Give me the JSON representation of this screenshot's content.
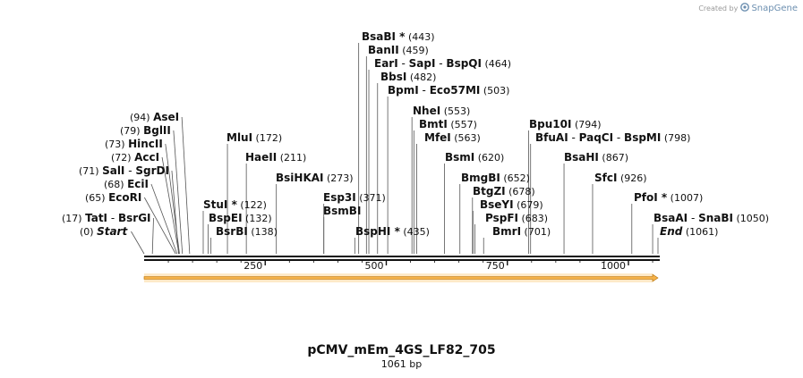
{
  "credit": {
    "prefix": "Created by",
    "brand": "SnapGene",
    "logo_icon": "snapgene-logo-icon"
  },
  "map": {
    "title": "pCMV_mEm_4GS_LF82_705",
    "length_label": "1061 bp",
    "length_bp": 1061,
    "axis_ticks": [
      250,
      500,
      750,
      1000
    ],
    "feature": {
      "start": 1,
      "end": 1061,
      "color": "#f5b24a",
      "direction": "forward"
    },
    "sites": [
      {
        "names": [
          "TatI",
          "BsrGI"
        ],
        "pos": 17,
        "pos_label": "(17)"
      },
      {
        "names": [
          "Start"
        ],
        "pos": 0,
        "pos_label": "(0)",
        "italic": true
      },
      {
        "names": [
          "EcoRI"
        ],
        "pos": 65,
        "pos_label": "(65)"
      },
      {
        "names": [
          "EciI"
        ],
        "pos": 68,
        "pos_label": "(68)"
      },
      {
        "names": [
          "SalI",
          "SgrDI"
        ],
        "pos": 71,
        "pos_label": "(71)"
      },
      {
        "names": [
          "AccI"
        ],
        "pos": 72,
        "pos_label": "(72)"
      },
      {
        "names": [
          "HincII"
        ],
        "pos": 73,
        "pos_label": "(73)"
      },
      {
        "names": [
          "BglII"
        ],
        "pos": 79,
        "pos_label": "(79)"
      },
      {
        "names": [
          "AseI"
        ],
        "pos": 94,
        "pos_label": "(94)"
      },
      {
        "names": [
          "MluI"
        ],
        "pos": 172,
        "pos_label": "(172)"
      },
      {
        "names": [
          "HaeII"
        ],
        "pos": 211,
        "pos_label": "(211)"
      },
      {
        "names": [
          "StuI *"
        ],
        "pos": 122,
        "pos_label": "(122)"
      },
      {
        "names": [
          "BspEI"
        ],
        "pos": 132,
        "pos_label": "(132)"
      },
      {
        "names": [
          "BsrBI"
        ],
        "pos": 138,
        "pos_label": "(138)"
      },
      {
        "names": [
          "BsiHKAI"
        ],
        "pos": 273,
        "pos_label": "(273)"
      },
      {
        "names": [
          "Esp3I"
        ],
        "pos": 371,
        "pos_label": "(371)"
      },
      {
        "names": [
          "BsmBI"
        ],
        "pos": 371,
        "pos_label": ""
      },
      {
        "names": [
          "BspHI *"
        ],
        "pos": 435,
        "pos_label": "(435)"
      },
      {
        "names": [
          "BsaBI *"
        ],
        "pos": 443,
        "pos_label": "(443)"
      },
      {
        "names": [
          "BanII"
        ],
        "pos": 459,
        "pos_label": "(459)"
      },
      {
        "names": [
          "EarI",
          "SapI",
          "BspQI"
        ],
        "pos": 464,
        "pos_label": "(464)"
      },
      {
        "names": [
          "BbsI"
        ],
        "pos": 482,
        "pos_label": "(482)"
      },
      {
        "names": [
          "BpmI",
          "Eco57MI"
        ],
        "pos": 503,
        "pos_label": "(503)"
      },
      {
        "names": [
          "NheI"
        ],
        "pos": 553,
        "pos_label": "(553)"
      },
      {
        "names": [
          "BmtI"
        ],
        "pos": 557,
        "pos_label": "(557)"
      },
      {
        "names": [
          "MfeI"
        ],
        "pos": 563,
        "pos_label": "(563)"
      },
      {
        "names": [
          "BsmI"
        ],
        "pos": 620,
        "pos_label": "(620)"
      },
      {
        "names": [
          "BmgBI"
        ],
        "pos": 652,
        "pos_label": "(652)"
      },
      {
        "names": [
          "BtgZI"
        ],
        "pos": 678,
        "pos_label": "(678)"
      },
      {
        "names": [
          "BseYI"
        ],
        "pos": 679,
        "pos_label": "(679)"
      },
      {
        "names": [
          "PspFI"
        ],
        "pos": 683,
        "pos_label": "(683)"
      },
      {
        "names": [
          "BmrI"
        ],
        "pos": 701,
        "pos_label": "(701)"
      },
      {
        "names": [
          "Bpu10I"
        ],
        "pos": 794,
        "pos_label": "(794)"
      },
      {
        "names": [
          "BfuAI",
          "PaqCI",
          "BspMI"
        ],
        "pos": 798,
        "pos_label": "(798)"
      },
      {
        "names": [
          "BsaHI"
        ],
        "pos": 867,
        "pos_label": "(867)"
      },
      {
        "names": [
          "SfcI"
        ],
        "pos": 926,
        "pos_label": "(926)"
      },
      {
        "names": [
          "PfoI *"
        ],
        "pos": 1007,
        "pos_label": "(1007)"
      },
      {
        "names": [
          "BsaAI",
          "SnaBI"
        ],
        "pos": 1050,
        "pos_label": "(1050)"
      },
      {
        "names": [
          "End"
        ],
        "pos": 1061,
        "pos_label": "(1061)",
        "italic": true
      }
    ]
  }
}
